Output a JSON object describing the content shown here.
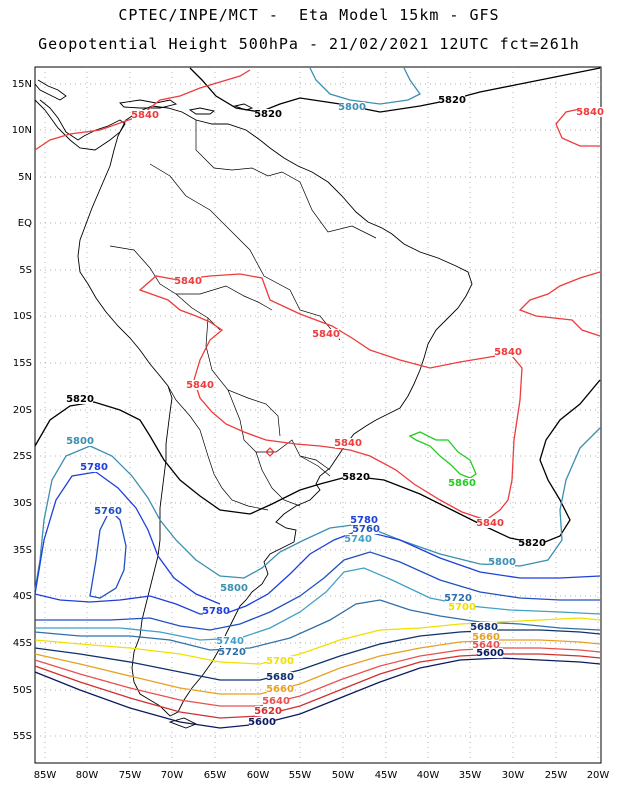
{
  "title_line1": "CPTEC/INPE/MCT -  Eta Model 15km - GFS",
  "title_line2": "Geopotential Height 500hPa - 21/02/2021 12UTC fct=261h",
  "lat_labels": [
    "15N",
    "10N",
    "5N",
    "EQ",
    "5S",
    "10S",
    "15S",
    "20S",
    "25S",
    "30S",
    "35S",
    "40S",
    "45S",
    "50S",
    "55S"
  ],
  "lon_labels": [
    "85W",
    "80W",
    "75W",
    "70W",
    "65W",
    "60W",
    "55W",
    "50W",
    "45W",
    "40W",
    "35W",
    "30W",
    "25W",
    "20W"
  ],
  "contour_colors": {
    "5860": "#22cc22",
    "5840": "#ee3b3b",
    "5820": "#000000",
    "5800": "#3b8fb0",
    "5780": "#1e3fdc",
    "5760": "#2050c0",
    "5740": "#40a0c8",
    "5720": "#3070a8",
    "5700": "#f0e000",
    "5680": "#103070",
    "5660": "#e8a020",
    "5640": "#e85050",
    "5620": "#d03030",
    "5600": "#0a1a60"
  },
  "contour_labels": [
    {
      "text": "5820",
      "color": "5820"
    },
    {
      "text": "5800",
      "color": "5800"
    },
    {
      "text": "5820",
      "color": "5820"
    },
    {
      "text": "5840",
      "color": "5840"
    },
    {
      "text": "5840",
      "color": "5840"
    },
    {
      "text": "5840",
      "color": "5840"
    },
    {
      "text": "5840",
      "color": "5840"
    },
    {
      "text": "5840",
      "color": "5840"
    },
    {
      "text": "5840",
      "color": "5840"
    },
    {
      "text": "5840",
      "color": "5840"
    },
    {
      "text": "5840",
      "color": "5840"
    },
    {
      "text": "5820",
      "color": "5820"
    },
    {
      "text": "5800",
      "color": "5800"
    },
    {
      "text": "5780",
      "color": "5780"
    },
    {
      "text": "5760",
      "color": "5760"
    },
    {
      "text": "5860",
      "color": "5860"
    },
    {
      "text": "5820",
      "color": "5820"
    },
    {
      "text": "5780",
      "color": "5780"
    },
    {
      "text": "5760",
      "color": "5760"
    },
    {
      "text": "5740",
      "color": "5740"
    },
    {
      "text": "5820",
      "color": "5820"
    },
    {
      "text": "5800",
      "color": "5800"
    },
    {
      "text": "5800",
      "color": "5800"
    },
    {
      "text": "5720",
      "color": "5720"
    },
    {
      "text": "5700",
      "color": "5700"
    },
    {
      "text": "5780",
      "color": "5780"
    },
    {
      "text": "5740",
      "color": "5740"
    },
    {
      "text": "5720",
      "color": "5720"
    },
    {
      "text": "5700",
      "color": "5700"
    },
    {
      "text": "5680",
      "color": "5680"
    },
    {
      "text": "5660",
      "color": "5660"
    },
    {
      "text": "5640",
      "color": "5640"
    },
    {
      "text": "5600",
      "color": "5600"
    },
    {
      "text": "5680",
      "color": "5680"
    },
    {
      "text": "5660",
      "color": "5660"
    },
    {
      "text": "5640",
      "color": "5640"
    },
    {
      "text": "5620",
      "color": "5620"
    },
    {
      "text": "5600",
      "color": "5600"
    }
  ]
}
